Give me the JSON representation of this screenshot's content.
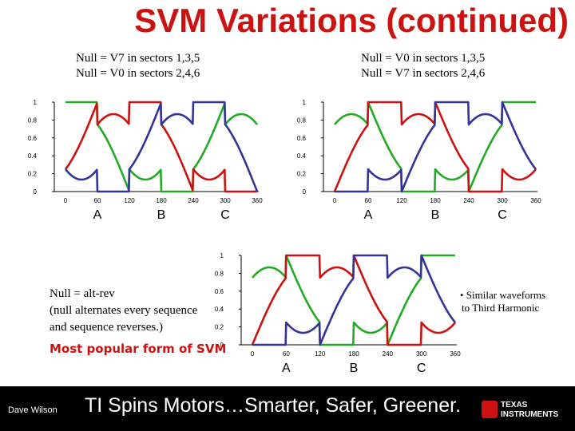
{
  "title": "SVM Variations (continued)",
  "caption_left": [
    "Null = V7 in sectors 1,3,5",
    "Null = V0 in sectors 2,4,6"
  ],
  "caption_right": [
    "Null = V0 in sectors 1,3,5",
    "Null = V7 in sectors 2,4,6"
  ],
  "note_lines": [
    "Null = alt-rev",
    "(null alternates every sequence",
    "and sequence reverses.)"
  ],
  "popular_text": "Most popular form of SVM",
  "bullet_lines": [
    "• Similar waveforms",
    "to Third Harmonic"
  ],
  "footer": {
    "author": "Dave Wilson",
    "slogan": "TI Spins Motors…Smarter, Safer, Greener.",
    "logo_lines": [
      "TEXAS",
      "INSTRUMENTS"
    ]
  },
  "colors": {
    "title": "#cc1111",
    "A": "#22aa22",
    "B": "#cc1111",
    "C": "#333399"
  },
  "chart_data": [
    {
      "type": "line",
      "variant": "V7 odd / V0 even",
      "xlim": [
        0,
        360
      ],
      "ylim": [
        0,
        1
      ],
      "x_ticks": [
        0,
        60,
        120,
        180,
        240,
        300,
        360
      ],
      "y_ticks": [
        0,
        0.2,
        0.4,
        0.6,
        0.8,
        1
      ],
      "y_tick_labels": [
        "0",
        "0.2",
        "0.4",
        "0.6",
        "0.8",
        "1"
      ],
      "phase_labels": [
        {
          "text": "A",
          "x": 60
        },
        {
          "text": "B",
          "x": 180
        },
        {
          "text": "C",
          "x": 300
        }
      ],
      "series": [
        {
          "phase": "A",
          "color": "#22aa22"
        },
        {
          "phase": "B",
          "color": "#cc1111"
        },
        {
          "phase": "C",
          "color": "#333399"
        }
      ]
    },
    {
      "type": "line",
      "variant": "V0 odd / V7 even",
      "xlim": [
        0,
        360
      ],
      "ylim": [
        0,
        1
      ],
      "x_ticks": [
        0,
        60,
        120,
        180,
        240,
        300,
        360
      ],
      "y_ticks": [
        0,
        0.2,
        0.4,
        0.6,
        0.8,
        1
      ],
      "y_tick_labels": [
        "0",
        "0.2",
        "0.4",
        "0.6",
        "0.8",
        "1"
      ],
      "phase_labels": [
        {
          "text": "A",
          "x": 60
        },
        {
          "text": "B",
          "x": 180
        },
        {
          "text": "C",
          "x": 300
        }
      ],
      "series": [
        {
          "phase": "A",
          "color": "#22aa22"
        },
        {
          "phase": "B",
          "color": "#cc1111"
        },
        {
          "phase": "C",
          "color": "#333399"
        }
      ]
    },
    {
      "type": "line",
      "variant": "alt-rev",
      "xlim": [
        0,
        360
      ],
      "ylim": [
        0,
        1
      ],
      "x_ticks": [
        0,
        60,
        120,
        180,
        240,
        300,
        360
      ],
      "y_ticks": [
        0,
        0.2,
        0.4,
        0.6,
        0.8,
        1
      ],
      "y_tick_labels": [
        "0",
        "0.2",
        "0.4",
        "0.6",
        "0.8",
        "1"
      ],
      "phase_labels": [
        {
          "text": "A",
          "x": 60
        },
        {
          "text": "B",
          "x": 180
        },
        {
          "text": "C",
          "x": 300
        }
      ],
      "series": [
        {
          "phase": "A",
          "color": "#22aa22"
        },
        {
          "phase": "B",
          "color": "#cc1111"
        },
        {
          "phase": "C",
          "color": "#333399"
        }
      ]
    }
  ]
}
